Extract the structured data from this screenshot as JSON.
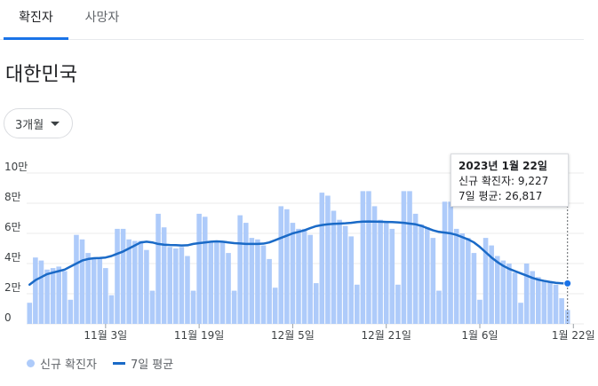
{
  "tabs": [
    {
      "label": "확진자",
      "selected": true
    },
    {
      "label": "사망자",
      "selected": false
    }
  ],
  "region_title": "대한민국",
  "range_dropdown": {
    "label": "3개월"
  },
  "tooltip": {
    "date": "2023년 1월 22일",
    "new_cases_label": "신규 확진자",
    "new_cases_value": "9,227",
    "avg_label": "7일 평균",
    "avg_value": "26,817"
  },
  "legend": {
    "bars_label": "신규 확진자",
    "line_label": "7일 평균"
  },
  "colors": {
    "bars": "#aecbfa",
    "line": "#1a6ac7",
    "accent": "#1a73e8"
  },
  "chart_data": {
    "type": "bar",
    "ylim": [
      0,
      100000
    ],
    "y_ticks": [
      {
        "value": 0,
        "label": "0"
      },
      {
        "value": 20000,
        "label": "2만"
      },
      {
        "value": 40000,
        "label": "4만"
      },
      {
        "value": 60000,
        "label": "6만"
      },
      {
        "value": 80000,
        "label": "8만"
      },
      {
        "value": 100000,
        "label": "10만"
      }
    ],
    "x_ticks": [
      {
        "index": 13,
        "label": "11월 3일"
      },
      {
        "index": 29,
        "label": "11월 19일"
      },
      {
        "index": 45,
        "label": "12월 5일"
      },
      {
        "index": 61,
        "label": "12월 21일"
      },
      {
        "index": 77,
        "label": "1월 6일"
      },
      {
        "index": 93,
        "label": "1월 22일"
      }
    ],
    "series": [
      {
        "name": "신규 확진자",
        "type": "bar",
        "values": [
          14000,
          44000,
          42000,
          36000,
          37000,
          38000,
          35000,
          16000,
          59000,
          56000,
          47000,
          44000,
          44000,
          37000,
          19000,
          63000,
          63000,
          56000,
          55000,
          55000,
          49000,
          22000,
          73000,
          64000,
          51000,
          50000,
          51000,
          45000,
          22000,
          73000,
          71000,
          55000,
          55000,
          54000,
          47000,
          22000,
          72000,
          67000,
          57000,
          56000,
          52000,
          43000,
          24000,
          78000,
          76000,
          67000,
          63000,
          63000,
          59000,
          27000,
          87000,
          85000,
          75000,
          69000,
          65000,
          58000,
          26000,
          88000,
          88000,
          78000,
          69000,
          67000,
          63000,
          26000,
          88000,
          88000,
          73000,
          66000,
          64000,
          57000,
          22000,
          81000,
          81000,
          63000,
          60000,
          57000,
          47000,
          16000,
          57000,
          52000,
          45000,
          42000,
          40000,
          34000,
          14000,
          40000,
          35000,
          31000,
          29000,
          28000,
          26000,
          17000,
          9227
        ]
      },
      {
        "name": "7일 평균",
        "type": "line",
        "values": [
          26000,
          29000,
          31000,
          33000,
          34000,
          35000,
          36000,
          38000,
          40000,
          42000,
          43000,
          43500,
          43700,
          44000,
          45000,
          46500,
          48000,
          50000,
          52000,
          54000,
          54500,
          54000,
          53000,
          52500,
          52300,
          52200,
          52000,
          52100,
          53000,
          53500,
          54000,
          54500,
          54700,
          54500,
          54000,
          53500,
          53300,
          53000,
          53000,
          53000,
          53200,
          54000,
          55500,
          57000,
          58500,
          60000,
          61000,
          62000,
          63500,
          64800,
          65500,
          66000,
          66300,
          66500,
          66700,
          67000,
          67500,
          67800,
          67900,
          67800,
          67700,
          67600,
          67500,
          67300,
          67000,
          66500,
          66000,
          65000,
          63500,
          62000,
          61000,
          60500,
          60000,
          59000,
          57500,
          56000,
          54000,
          51000,
          47500,
          44000,
          41000,
          38500,
          36500,
          35000,
          33500,
          32000,
          30500,
          29300,
          28500,
          27800,
          27200,
          26900,
          26817
        ]
      }
    ]
  }
}
